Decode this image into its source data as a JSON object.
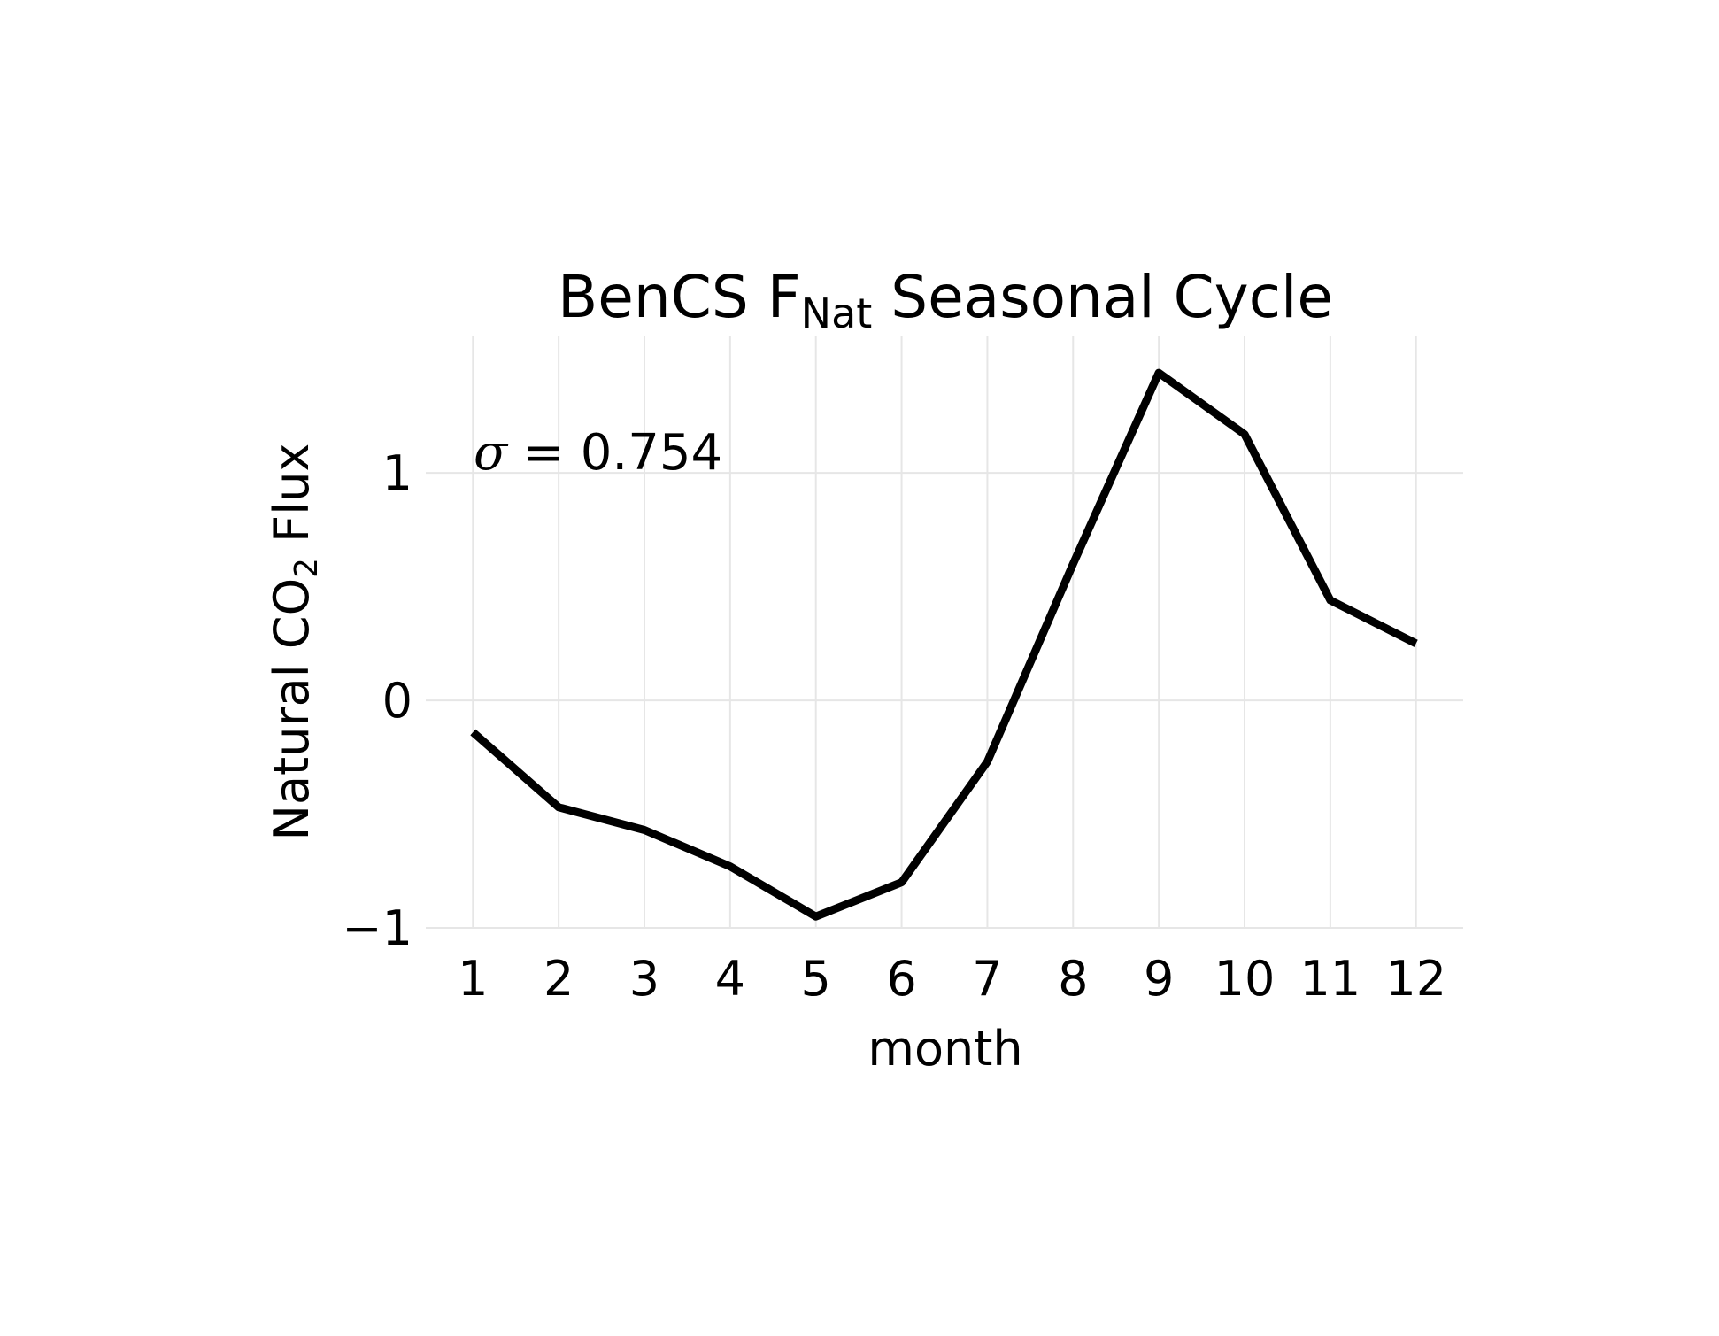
{
  "chart_data": {
    "type": "line",
    "title": {
      "main": "BenCS F",
      "sub": "Nat",
      "suffix": " Seasonal Cycle"
    },
    "xlabel": "month",
    "ylabel": {
      "prefix": "Natural CO",
      "sub": "2",
      "suffix": " Flux"
    },
    "annotation": {
      "symbol": "σ",
      "text": " = 0.754"
    },
    "x": [
      1,
      2,
      3,
      4,
      5,
      6,
      7,
      8,
      9,
      10,
      11,
      12
    ],
    "x_tick_labels": [
      "1",
      "2",
      "3",
      "4",
      "5",
      "6",
      "7",
      "8",
      "9",
      "10",
      "11",
      "12"
    ],
    "y_ticks": [
      -1,
      0,
      1
    ],
    "y_tick_labels": [
      "−1",
      "0",
      "1"
    ],
    "xlim": [
      0.45,
      12.55
    ],
    "ylim": [
      -1.0,
      1.6
    ],
    "grid": true,
    "series": [
      {
        "values": [
          -0.14,
          -0.47,
          -0.57,
          -0.73,
          -0.95,
          -0.8,
          -0.27,
          0.6,
          1.44,
          1.17,
          0.44,
          0.25
        ],
        "color": "#000000"
      }
    ]
  }
}
